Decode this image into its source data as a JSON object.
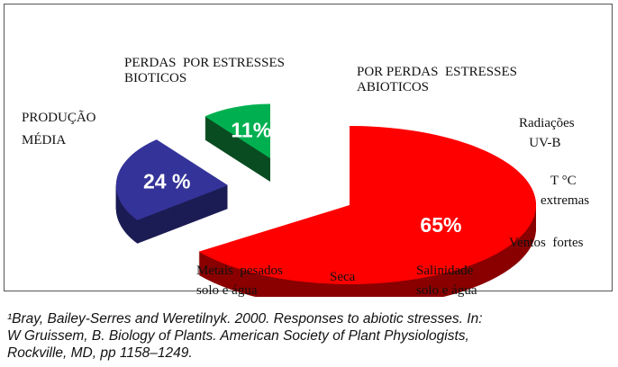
{
  "chart_data": {
    "type": "pie",
    "style": "3d-exploded",
    "slices": [
      {
        "name": "PERDAS POR ESTRESSES ABIOTICOS",
        "value": 65,
        "label": "65%",
        "color": "#ff0000",
        "side_color": "#8a0000"
      },
      {
        "name": "PRODUÇÃO MÉDIA",
        "value": 24,
        "label": "24 %",
        "color": "#333399",
        "side_color": "#1c1c55"
      },
      {
        "name": "PERDAS POR ESTRESSES BIOTICOS",
        "value": 11,
        "label": "11%",
        "color": "#00b050",
        "side_color": "#0b4d22"
      }
    ]
  },
  "labels": {
    "bioticos_line1": "PERDAS  POR ESTRESSES",
    "bioticos_line2": "BIOTICOS",
    "abioticos_line1": "POR PERDAS  ESTRESSES",
    "abioticos_line2": "ABIOTICOS",
    "producao_line1": "PRODUÇÃO",
    "producao_line2": "MÉDIA"
  },
  "annotations": {
    "radiacoes": "Radiações\n   UV-B",
    "temperatura": "   T °C\nextremas",
    "ventos": "Ventos  fortes",
    "salinidade": "Salinidade\nsolo e água",
    "seca": "Seca",
    "metais": "Metais  pesados\nsolo e água"
  },
  "reference": {
    "line1": "¹Bray, Bailey-Serres and Weretilnyk. 2000. Responses to abiotic  stresses. In:",
    "line2": "W Gruissem,  B. Biology of Plants. American Society of Plant Physiologists,",
    "line3": "Rockville,  MD, pp 1158–1249."
  }
}
